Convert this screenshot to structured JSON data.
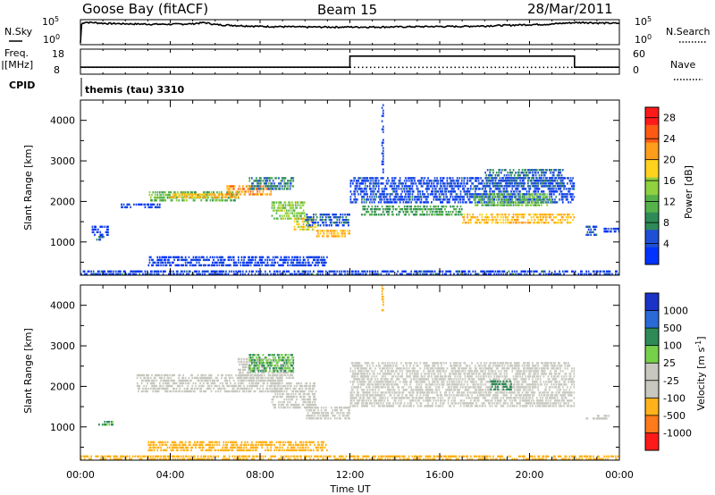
{
  "header": {
    "station": "Goose Bay (fitACF)",
    "beam": "Beam 15",
    "date": "28/Mar/2011"
  },
  "strip_labels": {
    "nsky": "N.Sky",
    "nsearch": "N.Search",
    "freq_line1": "Freq.",
    "freq_line2": "[MHz]",
    "nave": "Nave",
    "cpid": "CPID",
    "cpid_value": "themis (tau) 3310",
    "noise_ticks": [
      "10^5",
      "10^0"
    ],
    "freq_ticks": [
      "18",
      "8"
    ],
    "nave_ticks": [
      "60",
      "0"
    ]
  },
  "colors": {
    "power_scale": [
      "#0033ff",
      "#1f4fd6",
      "#2e8b57",
      "#55b24a",
      "#8fd13f",
      "#ffd21e",
      "#ff9e1b",
      "#ff5a14",
      "#ff1a1a"
    ],
    "velocity_scale": [
      "#ff1a1a",
      "#ff7a1a",
      "#ffb21a",
      "#c8c8c0",
      "#c8c8c0",
      "#77d04a",
      "#2e8b57",
      "#2a6ad6",
      "#1a32c8"
    ]
  },
  "chart_data": [
    {
      "type": "line",
      "name": "noise-and-frequency-strips",
      "x_unit": "hours UT",
      "xlim": [
        0,
        24
      ],
      "series": [
        {
          "name": "N.Sky",
          "x": [
            0,
            0.2,
            1,
            2,
            3,
            4,
            5,
            5.5,
            6,
            7,
            8,
            9,
            10,
            11,
            12,
            13,
            14,
            15,
            16,
            17,
            18,
            19,
            20,
            21,
            22,
            22.5,
            23,
            24
          ],
          "values": [
            1,
            400000,
            200000,
            150000,
            120000,
            110000,
            150000,
            300000,
            90000,
            50000,
            30000,
            25000,
            20000,
            20000,
            20000,
            20000,
            22000,
            25000,
            28000,
            30000,
            40000,
            60000,
            90000,
            120000,
            300000,
            350000,
            250000,
            200000
          ]
        },
        {
          "name": "Freq. [MHz]",
          "x": [
            0,
            12,
            12,
            22,
            22,
            24
          ],
          "values": [
            10.2,
            10.2,
            15.8,
            15.8,
            10.2,
            10.2
          ]
        },
        {
          "name": "Nave",
          "x": [
            0,
            24
          ],
          "values": [
            14,
            14
          ]
        }
      ]
    },
    {
      "type": "heatmap",
      "name": "power",
      "xlabel": "",
      "ylabel": "Slant Range [km]",
      "x_unit": "hours UT",
      "xlim": [
        0,
        24
      ],
      "ylim": [
        180,
        4500
      ],
      "y_ticks": [
        1000,
        2000,
        3000,
        4000
      ],
      "colorbar_label": "Power [dB]",
      "colorbar_ticks": [
        4,
        8,
        12,
        16,
        20,
        24,
        28
      ],
      "colorbar_range": [
        0,
        30
      ],
      "regions": [
        {
          "x": [
            0.7,
            1.0
          ],
          "y": [
            1050,
            1150
          ],
          "value": 6
        },
        {
          "x": [
            0.5,
            1.2
          ],
          "y": [
            1200,
            1400
          ],
          "value": 3
        },
        {
          "x": [
            1.8,
            3.5
          ],
          "y": [
            1850,
            1950
          ],
          "value": 4
        },
        {
          "x": [
            3.0,
            7.0
          ],
          "y": [
            2050,
            2250
          ],
          "value": 12
        },
        {
          "x": [
            4.0,
            7.0
          ],
          "y": [
            2100,
            2200
          ],
          "value": 20
        },
        {
          "x": [
            6.5,
            8.5
          ],
          "y": [
            2150,
            2400
          ],
          "value": 22
        },
        {
          "x": [
            7.5,
            9.5
          ],
          "y": [
            2300,
            2600
          ],
          "value": 8
        },
        {
          "x": [
            8.5,
            10.0
          ],
          "y": [
            1600,
            2000
          ],
          "value": 14
        },
        {
          "x": [
            9.5,
            10.5
          ],
          "y": [
            1300,
            1600
          ],
          "value": 18
        },
        {
          "x": [
            10.5,
            12.0
          ],
          "y": [
            1150,
            1300
          ],
          "value": 20
        },
        {
          "x": [
            10.0,
            12.0
          ],
          "y": [
            1400,
            1700
          ],
          "value": 5
        },
        {
          "x": [
            12.0,
            22.0
          ],
          "y": [
            2000,
            2600
          ],
          "value": 4
        },
        {
          "x": [
            12.5,
            17.0
          ],
          "y": [
            1700,
            1900
          ],
          "value": 10
        },
        {
          "x": [
            17.0,
            22.0
          ],
          "y": [
            1500,
            1700
          ],
          "value": 20
        },
        {
          "x": [
            17.5,
            21.0
          ],
          "y": [
            1900,
            2200
          ],
          "value": 12
        },
        {
          "x": [
            18.0,
            21.5
          ],
          "y": [
            2400,
            2800
          ],
          "value": 6
        },
        {
          "x": [
            22.5,
            23.0
          ],
          "y": [
            1200,
            1400
          ],
          "value": 4
        },
        {
          "x": [
            23.3,
            24.0
          ],
          "y": [
            1250,
            1350
          ],
          "value": 3
        },
        {
          "x": [
            0.0,
            24.0
          ],
          "y": [
            180,
            300
          ],
          "value": 4
        },
        {
          "x": [
            3.0,
            11.0
          ],
          "y": [
            450,
            650
          ],
          "value": 3
        },
        {
          "x": [
            13.4,
            13.5
          ],
          "y": [
            2700,
            4400
          ],
          "value": 4
        }
      ]
    },
    {
      "type": "heatmap",
      "name": "velocity",
      "xlabel": "Time UT",
      "ylabel": "Slant Range [km]",
      "x_unit": "hours UT",
      "xlim": [
        0,
        24
      ],
      "ylim": [
        180,
        4500
      ],
      "x_ticks": [
        "00:00",
        "04:00",
        "08:00",
        "12:00",
        "16:00",
        "20:00",
        "00:00"
      ],
      "y_ticks": [
        1000,
        2000,
        3000,
        4000
      ],
      "colorbar_label": "Velocity [m s^-1]",
      "colorbar_ticks": [
        -1000,
        -500,
        -100,
        -25,
        25,
        100,
        500,
        1000
      ],
      "regions": [
        {
          "x": [
            0.8,
            1.4
          ],
          "y": [
            1050,
            1150
          ],
          "value": 100
        },
        {
          "x": [
            2.5,
            9.0
          ],
          "y": [
            1900,
            2300
          ],
          "value": 0
        },
        {
          "x": [
            7.0,
            9.5
          ],
          "y": [
            2200,
            2700
          ],
          "value": 0
        },
        {
          "x": [
            7.5,
            9.5
          ],
          "y": [
            2400,
            2800
          ],
          "value": 100
        },
        {
          "x": [
            8.5,
            10.5
          ],
          "y": [
            1500,
            2100
          ],
          "value": 0
        },
        {
          "x": [
            10.0,
            12.0
          ],
          "y": [
            1200,
            1500
          ],
          "value": 0
        },
        {
          "x": [
            12.0,
            22.0
          ],
          "y": [
            1500,
            2600
          ],
          "value": 0
        },
        {
          "x": [
            18.2,
            19.2
          ],
          "y": [
            1950,
            2150
          ],
          "value": 200
        },
        {
          "x": [
            22.5,
            23.6
          ],
          "y": [
            1200,
            1300
          ],
          "value": 0
        },
        {
          "x": [
            0.0,
            24.0
          ],
          "y": [
            180,
            300
          ],
          "value": -300
        },
        {
          "x": [
            13.4,
            13.5
          ],
          "y": [
            3900,
            4500
          ],
          "value": -300
        },
        {
          "x": [
            3.0,
            11.0
          ],
          "y": [
            400,
            650
          ],
          "value": -200
        }
      ]
    }
  ]
}
